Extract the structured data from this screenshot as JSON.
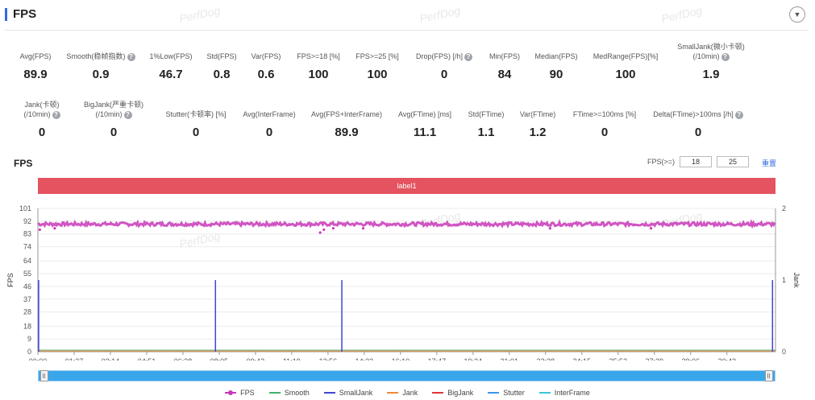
{
  "header": {
    "title": "FPS"
  },
  "watermark": "PerfDog",
  "stats_row1": [
    {
      "label": "Avg(FPS)",
      "value": "89.9",
      "help": false
    },
    {
      "label": "Smooth(稳帧指数)",
      "value": "0.9",
      "help": true
    },
    {
      "label": "1%Low(FPS)",
      "value": "46.7",
      "help": false
    },
    {
      "label": "Std(FPS)",
      "value": "0.8",
      "help": false
    },
    {
      "label": "Var(FPS)",
      "value": "0.6",
      "help": false
    },
    {
      "label": "FPS>=18 [%]",
      "value": "100",
      "help": false
    },
    {
      "label": "FPS>=25 [%]",
      "value": "100",
      "help": false
    },
    {
      "label": "Drop(FPS) [/h]",
      "value": "0",
      "help": true
    },
    {
      "label": "Min(FPS)",
      "value": "84",
      "help": false
    },
    {
      "label": "Median(FPS)",
      "value": "90",
      "help": false
    },
    {
      "label": "MedRange(FPS)[%]",
      "value": "100",
      "help": false
    },
    {
      "label": "SmallJank(微小卡顿)",
      "label2": "(/10min)",
      "value": "1.9",
      "help": true
    }
  ],
  "stats_row2": [
    {
      "label": "Jank(卡顿)",
      "label2": "(/10min)",
      "value": "0",
      "help": true
    },
    {
      "label": "BigJank(严重卡顿)",
      "label2": "(/10min)",
      "value": "0",
      "help": true
    },
    {
      "label": "Stutter(卡顿率) [%]",
      "value": "0",
      "help": false
    },
    {
      "label": "Avg(InterFrame)",
      "value": "0",
      "help": false
    },
    {
      "label": "Avg(FPS+InterFrame)",
      "value": "89.9",
      "help": false
    },
    {
      "label": "Avg(FTime) [ms]",
      "value": "11.1",
      "help": false
    },
    {
      "label": "Std(FTime)",
      "value": "1.1",
      "help": false
    },
    {
      "label": "Var(FTime)",
      "value": "1.2",
      "help": false
    },
    {
      "label": "FTime>=100ms [%]",
      "value": "0",
      "help": false
    },
    {
      "label": "Delta(FTime)>100ms [/h]",
      "value": "0",
      "help": true
    }
  ],
  "chart_section": {
    "title": "FPS",
    "threshold_label": "FPS(>=)",
    "threshold1": "18",
    "threshold2": "25",
    "reset_label": "重置",
    "band_label": "label1"
  },
  "chart_data": {
    "type": "line",
    "xlabel": "",
    "ylabel": "FPS",
    "y2label": "Jank",
    "ylim": [
      0,
      101
    ],
    "y2lim": [
      0,
      2
    ],
    "yticks": [
      "101",
      "92",
      "83",
      "74",
      "64",
      "55",
      "46",
      "37",
      "28",
      "18",
      "9",
      "0"
    ],
    "y2ticks": [
      "2",
      "1",
      "0"
    ],
    "x_ticks": [
      "00:00",
      "01:37",
      "03:14",
      "04:51",
      "06:28",
      "08:05",
      "09:42",
      "11:19",
      "12:56",
      "14:33",
      "16:10",
      "17:47",
      "19:24",
      "21:01",
      "22:38",
      "24:15",
      "25:52",
      "27:29",
      "29:06",
      "30:43"
    ],
    "duration_seconds": 1973,
    "fps_baseline": 90,
    "fps_dips": [
      {
        "t": 5,
        "fps": 86
      },
      {
        "t": 45,
        "fps": 87
      },
      {
        "t": 755,
        "fps": 84
      },
      {
        "t": 765,
        "fps": 86
      },
      {
        "t": 790,
        "fps": 87
      },
      {
        "t": 870,
        "fps": 87
      },
      {
        "t": 1370,
        "fps": 87
      },
      {
        "t": 1640,
        "fps": 87
      }
    ],
    "small_jank_times": [
      2,
      475,
      813,
      1965
    ],
    "small_jank_value": 1,
    "series": [
      {
        "name": "FPS",
        "color": "#c837b8"
      },
      {
        "name": "Smooth",
        "color": "#3fb26b"
      },
      {
        "name": "SmallJank",
        "color": "#4044d4"
      },
      {
        "name": "Jank",
        "color": "#f08a3a"
      },
      {
        "name": "BigJank",
        "color": "#e0353b"
      },
      {
        "name": "Stutter",
        "color": "#3a95e8"
      },
      {
        "name": "InterFrame",
        "color": "#36c8d8"
      }
    ]
  }
}
